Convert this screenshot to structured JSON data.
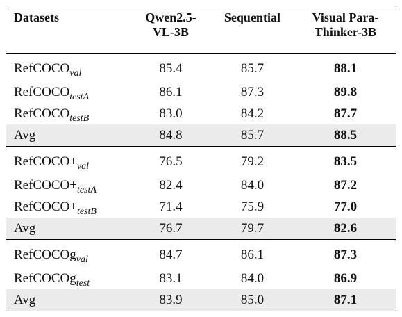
{
  "table": {
    "header": [
      [
        "Datasets"
      ],
      [
        "Qwen2.5-",
        "VL-3B"
      ],
      [
        "Sequential"
      ],
      [
        "Visual Para-",
        "Thinker-3B"
      ]
    ],
    "groups": [
      {
        "rows": [
          {
            "name": "RefCOCO",
            "sub": "val",
            "values": [
              "85.4",
              "85.7",
              "88.1"
            ]
          },
          {
            "name": "RefCOCO",
            "sub": "testA",
            "values": [
              "86.1",
              "87.3",
              "89.8"
            ]
          },
          {
            "name": "RefCOCO",
            "sub": "testB",
            "values": [
              "83.0",
              "84.2",
              "87.7"
            ]
          },
          {
            "name": "Avg",
            "values": [
              "84.8",
              "85.7",
              "88.5"
            ]
          }
        ]
      },
      {
        "rows": [
          {
            "name": "RefCOCO+",
            "sub": "val",
            "values": [
              "76.5",
              "79.2",
              "83.5"
            ]
          },
          {
            "name": "RefCOCO+",
            "sub": "testA",
            "values": [
              "82.4",
              "84.0",
              "87.2"
            ]
          },
          {
            "name": "RefCOCO+",
            "sub": "testB",
            "values": [
              "71.4",
              "75.9",
              "77.0"
            ]
          },
          {
            "name": "Avg",
            "values": [
              "76.7",
              "79.7",
              "82.6"
            ]
          }
        ]
      },
      {
        "rows": [
          {
            "name": "RefCOCOg",
            "sub": "val",
            "values": [
              "84.7",
              "86.1",
              "87.3"
            ]
          },
          {
            "name": "RefCOCOg",
            "sub": "test",
            "values": [
              "83.1",
              "84.0",
              "86.9"
            ]
          },
          {
            "name": "Avg",
            "values": [
              "83.9",
              "85.0",
              "87.1"
            ]
          }
        ]
      }
    ]
  }
}
